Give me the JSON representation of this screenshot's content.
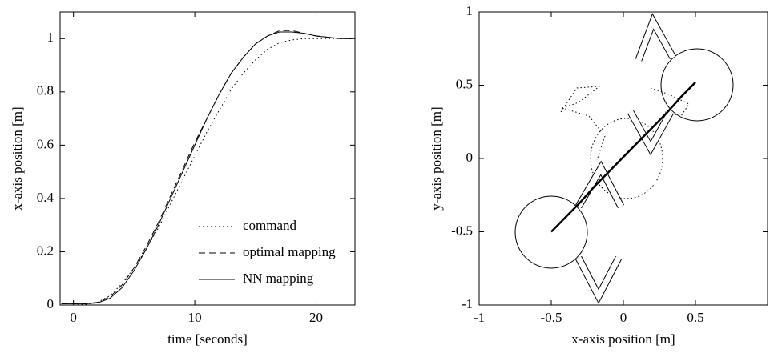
{
  "chart_data": [
    {
      "type": "line",
      "xlabel": "time [seconds]",
      "ylabel": "x-axis position [m]",
      "x": [
        -1,
        0,
        1,
        2,
        3,
        4,
        5,
        6,
        7,
        8,
        9,
        10,
        11,
        12,
        13,
        14,
        15,
        16,
        17,
        18,
        19,
        20,
        21,
        22,
        23
      ],
      "series": [
        {
          "name": "command",
          "color": "#000000",
          "dash": "dotted",
          "values": [
            0,
            0,
            0.002,
            0.01,
            0.035,
            0.08,
            0.14,
            0.21,
            0.29,
            0.38,
            0.47,
            0.56,
            0.65,
            0.73,
            0.81,
            0.87,
            0.92,
            0.96,
            0.985,
            0.995,
            1,
            1,
            1,
            1,
            1
          ]
        },
        {
          "name": "optimal mapping",
          "color": "#000000",
          "dash": "dashed",
          "values": [
            0.005,
            0.005,
            0.005,
            0.01,
            0.03,
            0.075,
            0.14,
            0.22,
            0.31,
            0.41,
            0.51,
            0.61,
            0.7,
            0.79,
            0.87,
            0.93,
            0.98,
            1.01,
            1.03,
            1.03,
            1.02,
            1.01,
            1.005,
            1,
            1
          ]
        },
        {
          "name": "NN mapping",
          "color": "#000000",
          "dash": "solid",
          "values": [
            0.005,
            0.005,
            0.005,
            0.008,
            0.025,
            0.065,
            0.13,
            0.21,
            0.3,
            0.4,
            0.5,
            0.6,
            0.7,
            0.79,
            0.87,
            0.93,
            0.98,
            1.01,
            1.025,
            1.025,
            1.02,
            1.01,
            1.005,
            1,
            1
          ]
        }
      ],
      "xlim": [
        -1.1,
        23.2
      ],
      "xticks": [
        0,
        10,
        20
      ],
      "ylim": [
        0,
        1.1
      ],
      "yticks": [
        0,
        0.2,
        0.4,
        0.6,
        0.8,
        1
      ],
      "legend": "lower right"
    },
    {
      "type": "line",
      "xlabel": "x-axis position [m]",
      "ylabel": "y-axis position [m]",
      "x": [
        -0.5,
        -0.4,
        -0.3,
        -0.2,
        -0.1,
        0,
        0.1,
        0.2,
        0.3,
        0.4,
        0.5
      ],
      "series": [
        {
          "color": "#000000",
          "dash": "solid",
          "width": 2.5,
          "values": [
            -0.5,
            -0.4,
            -0.3,
            -0.19,
            -0.09,
            0.01,
            0.11,
            0.21,
            0.31,
            0.42,
            0.52
          ]
        }
      ],
      "xlim": [
        -1,
        1
      ],
      "xticks": [
        -1,
        -0.5,
        0,
        0.5
      ],
      "ylim": [
        -1,
        1
      ],
      "yticks": [
        -1,
        -0.5,
        0,
        0.5,
        1
      ]
    }
  ]
}
